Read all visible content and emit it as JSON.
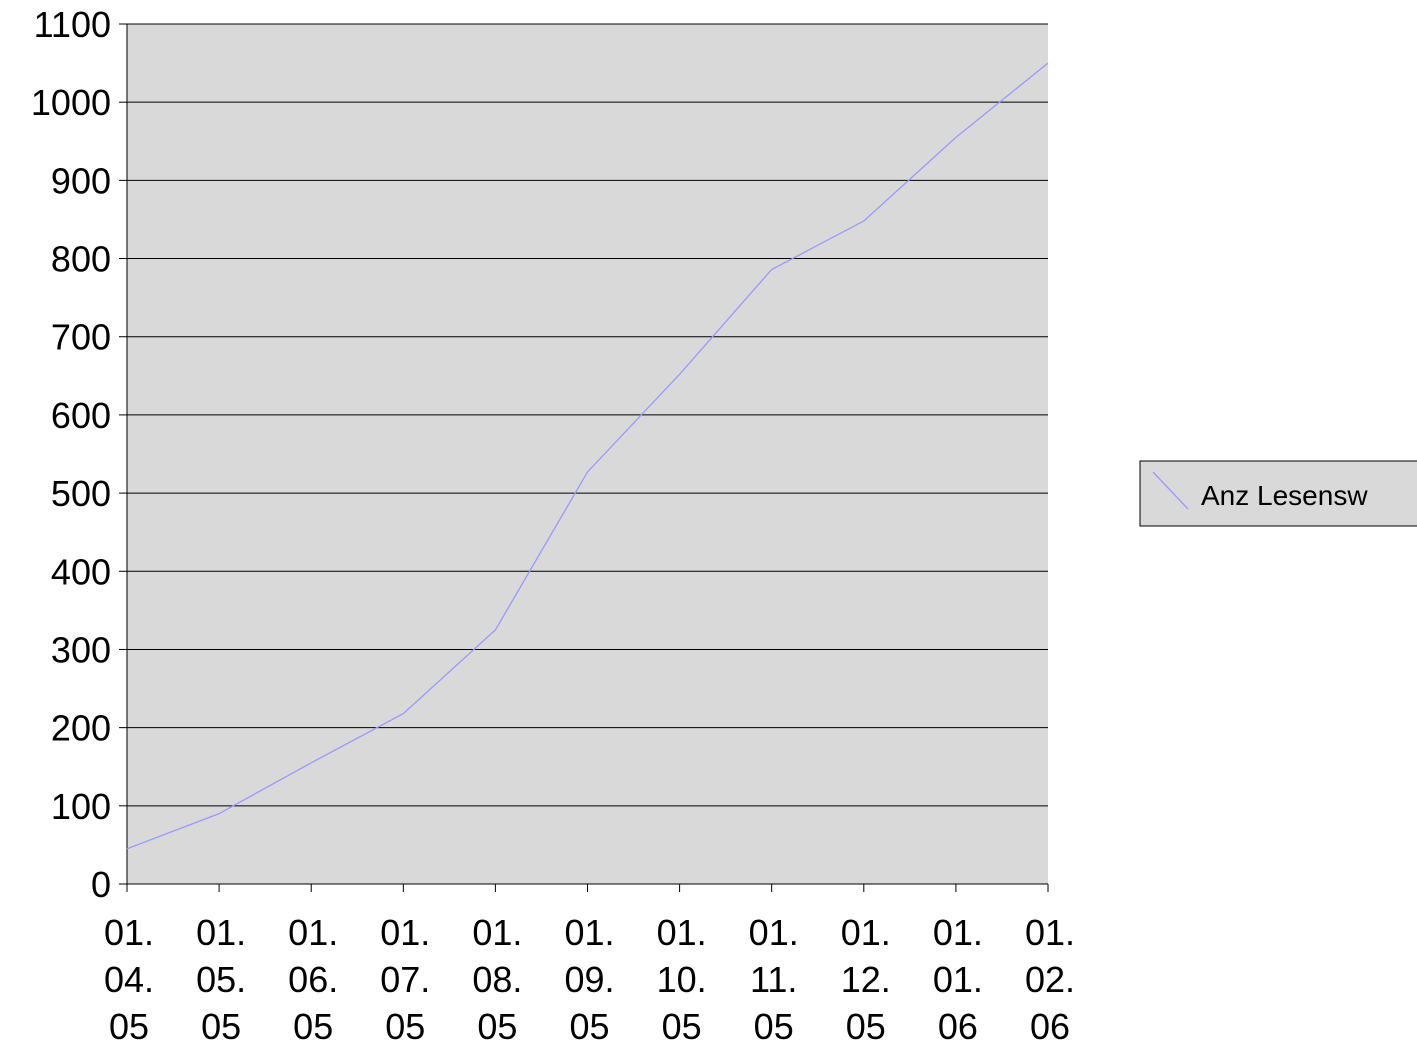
{
  "chart_data": {
    "type": "line",
    "title": "",
    "xlabel": "",
    "ylabel": "",
    "categories": [
      [
        "01.",
        "04.",
        "05"
      ],
      [
        "01.",
        "05.",
        "05"
      ],
      [
        "01.",
        "06.",
        "05"
      ],
      [
        "01.",
        "07.",
        "05"
      ],
      [
        "01.",
        "08.",
        "05"
      ],
      [
        "01.",
        "09.",
        "05"
      ],
      [
        "01.",
        "10.",
        "05"
      ],
      [
        "01.",
        "11.",
        "05"
      ],
      [
        "01.",
        "12.",
        "05"
      ],
      [
        "01.",
        "01.",
        "06"
      ],
      [
        "01.",
        "02.",
        "06"
      ]
    ],
    "series": [
      {
        "name": "Anz Lesensw",
        "values": [
          45,
          90,
          155,
          218,
          325,
          527,
          652,
          786,
          848,
          955,
          1050
        ],
        "color": "#9999ff"
      }
    ],
    "ylim": [
      0,
      1100
    ],
    "yticks": [
      0,
      100,
      200,
      300,
      400,
      500,
      600,
      700,
      800,
      900,
      1000,
      1100
    ],
    "grid": true,
    "legend_position": "right",
    "plot_background": "#d9d9d9",
    "legend_background": "#d9d9d9"
  }
}
